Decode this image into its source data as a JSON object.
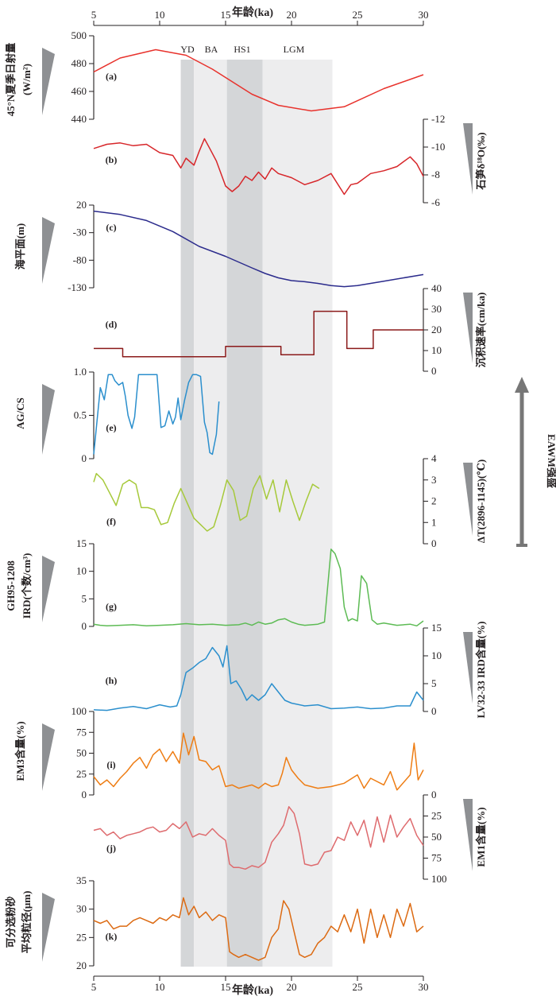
{
  "figure": {
    "x_title_top": "年龄(ka)",
    "x_title_bottom": "年龄(ka)",
    "x_ticks": [
      5,
      10,
      15,
      20,
      25,
      30
    ],
    "x_range": [
      5,
      30
    ],
    "eawm_label": "EAWM强盛"
  },
  "bands": [
    {
      "name": "YD",
      "from": 11.6,
      "to": 12.6,
      "shade": "#d4d6d8"
    },
    {
      "name": "BA",
      "from": 12.6,
      "to": 15.1,
      "shade": "#ededee"
    },
    {
      "name": "HS1",
      "from": 15.1,
      "to": 17.8,
      "shade": "#d4d6d8"
    },
    {
      "name": "LGM",
      "from": 17.8,
      "to": 23.1,
      "shade": "#ededee"
    }
  ],
  "chart_data": [
    {
      "id": "a",
      "type": "line",
      "panel_label": "(a)",
      "ylabel": "45°N夏季日射量",
      "ylabel2": "(W/m²)",
      "yticks": [
        440,
        460,
        480,
        500
      ],
      "ylim": [
        440,
        500
      ],
      "axis_side": "left",
      "color": "#e8322c",
      "x": [
        5,
        7,
        9.7,
        12,
        14,
        17,
        19,
        21.5,
        24,
        27,
        30
      ],
      "y": [
        474,
        484,
        490,
        486,
        476,
        458,
        450,
        446,
        449,
        462,
        472
      ]
    },
    {
      "id": "b",
      "type": "line",
      "panel_label": "(b)",
      "ylabel": "石笋δ¹⁸O(‰)",
      "yticks": [
        -12,
        -10,
        -8,
        -6
      ],
      "ylim": [
        -12,
        -6
      ],
      "axis_side": "right",
      "inverted": true,
      "color": "#d7262a",
      "x": [
        5,
        6,
        7,
        8,
        9,
        10,
        11,
        11.6,
        12,
        12.6,
        13,
        13.4,
        13.8,
        14.3,
        15,
        15.5,
        16,
        16.5,
        17,
        17.5,
        18,
        18.5,
        19,
        20,
        21,
        22,
        23,
        24,
        24.5,
        25,
        26,
        27,
        28,
        29,
        29.5,
        30
      ],
      "y": [
        -9.9,
        -10.2,
        -10.3,
        -10.1,
        -10.2,
        -9.6,
        -9.4,
        -8.5,
        -9.2,
        -8.7,
        -9.7,
        -10.6,
        -9.9,
        -9.0,
        -7.2,
        -6.8,
        -7.2,
        -7.9,
        -7.6,
        -8.2,
        -7.7,
        -8.5,
        -8.1,
        -7.8,
        -7.3,
        -7.6,
        -8.1,
        -6.6,
        -7.3,
        -7.4,
        -8.1,
        -8.3,
        -8.6,
        -9.3,
        -8.8,
        -7.9
      ]
    },
    {
      "id": "c",
      "type": "line",
      "panel_label": "(c)",
      "ylabel": "海平面(m)",
      "yticks": [
        20,
        -30,
        -80,
        -130
      ],
      "ylim": [
        -130,
        20
      ],
      "axis_side": "left",
      "color": "#2b2b8c",
      "x": [
        5,
        7,
        9,
        11,
        13,
        15,
        17,
        18,
        19,
        20,
        21,
        22,
        23,
        24,
        25,
        27,
        30
      ],
      "y": [
        9,
        3,
        -8,
        -28,
        -55,
        -73,
        -94,
        -104,
        -112,
        -117,
        -119,
        -122,
        -126,
        -128,
        -126,
        -118,
        -106
      ]
    },
    {
      "id": "d",
      "type": "line",
      "panel_label": "(d)",
      "ylabel": "沉积速率(cm/ka)",
      "yticks": [
        0,
        10,
        20,
        30,
        40
      ],
      "ylim": [
        0,
        40
      ],
      "axis_side": "right",
      "color": "#8b1a1a",
      "x": [
        5,
        7.2,
        7.2,
        15.0,
        15.0,
        19.2,
        19.2,
        21.7,
        21.7,
        24.2,
        24.2,
        26.2,
        26.2,
        30
      ],
      "y": [
        11,
        11,
        7,
        7,
        12,
        12,
        8,
        8,
        29,
        29,
        11,
        11,
        20,
        20
      ]
    },
    {
      "id": "e",
      "type": "line",
      "panel_label": "(e)",
      "ylabel": "AG/CS",
      "yticks": [
        0,
        0.5,
        1.0
      ],
      "yticklabels": [
        "0",
        "0.5",
        "1.0"
      ],
      "ylim": [
        0,
        1
      ],
      "axis_side": "left",
      "color": "#2b8fcd",
      "x": [
        5,
        5.5,
        5.8,
        6.1,
        6.4,
        6.6,
        6.9,
        7.2,
        7.4,
        7.6,
        7.9,
        8.1,
        8.4,
        8.8,
        9.3,
        9.8,
        10.1,
        10.4,
        10.7,
        11.0,
        11.2,
        11.4,
        11.6,
        11.9,
        12.2,
        12.5,
        12.8,
        13.1,
        13.4,
        13.6,
        13.8,
        14.0,
        14.3,
        14.5
      ],
      "y": [
        0.05,
        0.82,
        0.68,
        0.97,
        0.97,
        0.9,
        0.85,
        0.88,
        0.72,
        0.5,
        0.35,
        0.48,
        0.97,
        0.97,
        0.97,
        0.97,
        0.36,
        0.38,
        0.55,
        0.4,
        0.48,
        0.7,
        0.45,
        0.68,
        0.88,
        0.97,
        0.97,
        0.95,
        0.42,
        0.3,
        0.07,
        0.05,
        0.28,
        0.66
      ]
    },
    {
      "id": "f",
      "type": "line",
      "panel_label": "(f)",
      "ylabel": "ΔT(2896-1145)(℃)",
      "yticks": [
        0,
        1,
        2,
        3,
        4
      ],
      "ylim": [
        0,
        4
      ],
      "axis_side": "right",
      "color": "#a6c93a",
      "x": [
        5,
        5.2,
        5.7,
        6.2,
        6.7,
        7.2,
        7.7,
        8.2,
        8.6,
        9.1,
        9.6,
        10.1,
        10.6,
        11.1,
        11.6,
        12.1,
        12.6,
        13.1,
        13.6,
        14.1,
        14.6,
        15.1,
        15.6,
        16.1,
        16.6,
        17.1,
        17.6,
        18.1,
        18.6,
        19.1,
        19.6,
        20.1,
        20.6,
        21.1,
        21.6,
        22.1
      ],
      "y": [
        2.9,
        3.3,
        3.0,
        2.4,
        1.8,
        2.8,
        3.0,
        2.8,
        1.7,
        1.7,
        1.6,
        0.9,
        1.0,
        1.9,
        2.6,
        1.9,
        1.2,
        0.9,
        0.6,
        0.8,
        1.8,
        3.0,
        2.5,
        1.1,
        1.3,
        2.6,
        3.2,
        2.1,
        3.0,
        1.5,
        3.0,
        2.0,
        1.1,
        2.0,
        2.8,
        2.6
      ]
    },
    {
      "id": "g",
      "type": "line",
      "panel_label": "(g)",
      "ylabel": "GH95-1208",
      "ylabel2": "IRD(个数/cm³)",
      "yticks": [
        0,
        5,
        10,
        15
      ],
      "ylim": [
        0,
        15
      ],
      "axis_side": "left",
      "color": "#5dbb54",
      "x": [
        5,
        5.5,
        6,
        7,
        8,
        9,
        10,
        11,
        12,
        13,
        14,
        15,
        16,
        16.5,
        17,
        17.5,
        18,
        18.5,
        19,
        19.5,
        20,
        20.5,
        21,
        22,
        22.5,
        23,
        23.3,
        23.7,
        24,
        24.3,
        24.6,
        25,
        25.3,
        25.7,
        26.1,
        26.5,
        27,
        28,
        29,
        29.5,
        30
      ],
      "y": [
        0.4,
        0.2,
        0.1,
        0.2,
        0.3,
        0.1,
        0.2,
        0.3,
        0.5,
        0.3,
        0.4,
        0.2,
        0.3,
        0.6,
        0.2,
        0.8,
        0.4,
        0.6,
        1.2,
        1.4,
        0.8,
        0.4,
        0.2,
        0.4,
        0.8,
        14.0,
        13.2,
        10.5,
        3.5,
        1.0,
        1.4,
        1.0,
        9.2,
        7.8,
        1.2,
        0.4,
        0.6,
        0.2,
        0.4,
        0.1,
        1.0
      ]
    },
    {
      "id": "h",
      "type": "line",
      "panel_label": "(h)",
      "ylabel": "LV32-33 IRD含量(%)",
      "yticks": [
        0,
        5,
        10,
        15
      ],
      "ylim": [
        0,
        15
      ],
      "axis_side": "right",
      "color": "#2b8fcd",
      "x": [
        5,
        6,
        7,
        8,
        9,
        10,
        10.8,
        11.3,
        11.6,
        12,
        12.5,
        13,
        13.5,
        14,
        14.5,
        14.8,
        15.1,
        15.4,
        15.8,
        16.2,
        16.6,
        17,
        17.5,
        18,
        18.5,
        19,
        19.5,
        20,
        21,
        22,
        23,
        24,
        25,
        26,
        27,
        28,
        29,
        29.5,
        30
      ],
      "y": [
        0.3,
        0.2,
        0.6,
        0.9,
        0.5,
        1.2,
        0.8,
        1.0,
        3.0,
        7.0,
        7.8,
        8.8,
        9.5,
        11.5,
        10.0,
        8.0,
        11.8,
        5.0,
        5.5,
        4.0,
        2.0,
        3.0,
        2.0,
        3.0,
        5.0,
        3.5,
        2.0,
        1.5,
        1.0,
        1.2,
        0.5,
        0.6,
        0.8,
        0.5,
        0.6,
        1.0,
        1.0,
        3.5,
        2.0
      ]
    },
    {
      "id": "i",
      "type": "line",
      "panel_label": "(i)",
      "ylabel": "EM3含量(%)",
      "yticks": [
        0,
        25,
        50,
        75,
        100
      ],
      "ylim": [
        0,
        100
      ],
      "axis_side": "left",
      "color": "#ee7d14",
      "x": [
        5,
        5.5,
        6,
        6.5,
        7,
        7.5,
        8,
        8.5,
        9,
        9.5,
        10,
        10.5,
        11,
        11.5,
        11.8,
        12.2,
        12.6,
        13,
        13.5,
        14,
        14.5,
        15,
        15.5,
        16,
        16.5,
        17,
        17.5,
        18,
        18.5,
        19,
        19.3,
        19.6,
        20,
        20.5,
        21,
        22,
        23,
        24,
        25,
        25.5,
        26,
        27,
        27.5,
        28,
        29,
        29.3,
        29.6,
        30
      ],
      "y": [
        22,
        12,
        18,
        10,
        20,
        28,
        38,
        45,
        32,
        48,
        55,
        40,
        52,
        38,
        74,
        48,
        70,
        42,
        40,
        30,
        35,
        10,
        12,
        8,
        10,
        12,
        8,
        14,
        10,
        12,
        26,
        45,
        30,
        20,
        12,
        8,
        10,
        14,
        24,
        8,
        20,
        12,
        28,
        6,
        24,
        62,
        18,
        30
      ]
    },
    {
      "id": "j",
      "type": "line",
      "panel_label": "(j)",
      "ylabel": "EM1含量(%)",
      "yticks": [
        0,
        25,
        50,
        75,
        100
      ],
      "ylim": [
        0,
        100
      ],
      "axis_side": "right",
      "inverted": true,
      "color": "#de6b6e",
      "x": [
        5,
        5.5,
        6,
        6.5,
        7,
        7.5,
        8,
        8.5,
        9,
        9.5,
        10,
        10.5,
        11,
        11.5,
        12,
        12.5,
        13,
        13.5,
        14,
        14.5,
        15,
        15.3,
        15.6,
        16,
        16.5,
        17,
        17.5,
        18,
        18.5,
        19,
        19.4,
        19.8,
        20.2,
        20.6,
        21,
        21.5,
        22,
        22.5,
        23,
        23.5,
        24,
        24.5,
        25,
        25.5,
        26,
        26.5,
        27,
        27.5,
        28,
        28.5,
        29,
        29.5,
        30
      ],
      "y": [
        42,
        40,
        48,
        44,
        52,
        48,
        46,
        44,
        40,
        38,
        44,
        42,
        34,
        40,
        32,
        50,
        46,
        48,
        40,
        48,
        54,
        82,
        86,
        86,
        88,
        84,
        86,
        80,
        56,
        46,
        36,
        14,
        22,
        46,
        82,
        84,
        82,
        68,
        66,
        50,
        54,
        32,
        48,
        30,
        62,
        26,
        56,
        24,
        50,
        38,
        28,
        48,
        60
      ]
    },
    {
      "id": "k",
      "type": "line",
      "panel_label": "(k)",
      "ylabel": "可分选粉砂",
      "ylabel2": "平均粒径(μm)",
      "yticks": [
        20,
        25,
        30,
        35
      ],
      "ylim": [
        20,
        35
      ],
      "axis_side": "left",
      "color": "#dc6a12",
      "x": [
        5,
        5.5,
        6,
        6.5,
        7,
        7.5,
        8,
        8.5,
        9,
        9.5,
        10,
        10.5,
        11,
        11.5,
        11.8,
        12.2,
        12.6,
        13,
        13.5,
        14,
        14.5,
        15,
        15.3,
        15.6,
        16,
        16.5,
        17,
        17.5,
        18,
        18.5,
        19,
        19.4,
        19.8,
        20.2,
        20.6,
        21,
        21.5,
        22,
        22.5,
        23,
        23.5,
        24,
        24.5,
        25,
        25.5,
        26,
        26.5,
        27,
        27.5,
        28,
        28.5,
        29,
        29.5,
        30
      ],
      "y": [
        28,
        27.5,
        28,
        26.5,
        27,
        27,
        28,
        28.5,
        28,
        27.5,
        28.5,
        28,
        29,
        28.5,
        32,
        29,
        30.5,
        28.5,
        29.5,
        28,
        29,
        28.5,
        22.5,
        22,
        21.5,
        22,
        21.5,
        21,
        21.5,
        25,
        26.5,
        31.5,
        30,
        26,
        22,
        21.5,
        22,
        24,
        25,
        27,
        26,
        29,
        26,
        30,
        24,
        30,
        25,
        29,
        25,
        30,
        27,
        31,
        26,
        27
      ]
    }
  ]
}
